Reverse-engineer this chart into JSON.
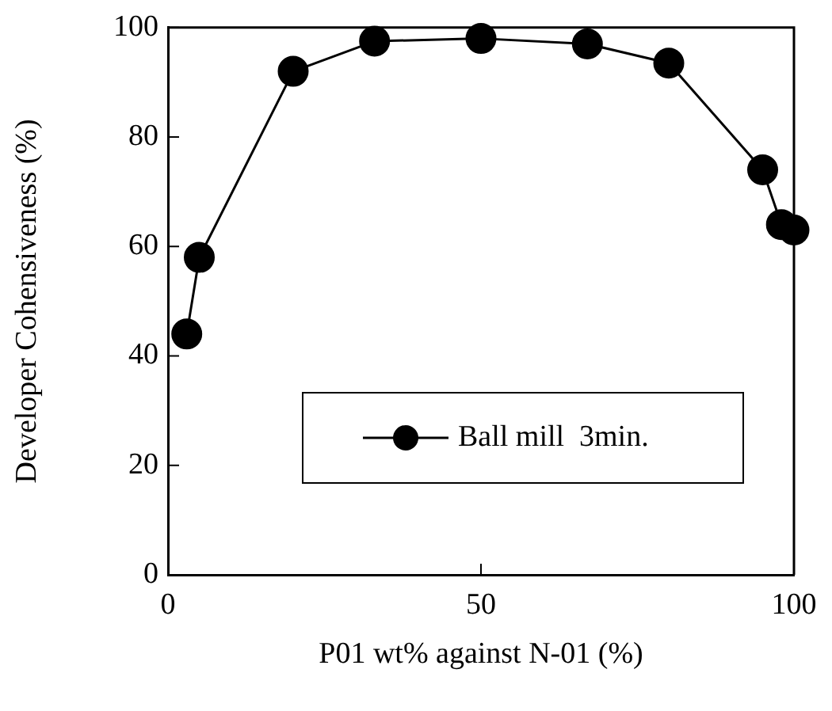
{
  "chart_data": {
    "type": "line",
    "xlabel": "P01 wt% against N-01 (%)",
    "ylabel": "Developer Cohensiveness (%)",
    "x": [
      3,
      5,
      20,
      33,
      50,
      67,
      80,
      95,
      98,
      100
    ],
    "series": [
      {
        "name": "Ball mill  3min.",
        "color": "#000000",
        "values": [
          44,
          58,
          92,
          97.5,
          98,
          97,
          93.5,
          74,
          64,
          63
        ]
      }
    ],
    "xlim": [
      0,
      100
    ],
    "xticks": [
      0,
      50,
      100
    ],
    "ylim": [
      0,
      100
    ],
    "yticks": [
      0,
      20,
      40,
      60,
      80,
      100
    ],
    "grid": false,
    "legend": "bottom right",
    "marker": "circle",
    "line_style": "solid"
  }
}
